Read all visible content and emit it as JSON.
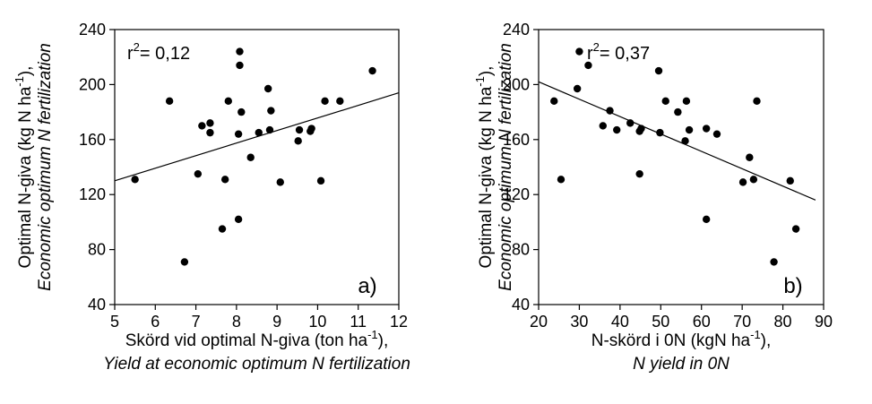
{
  "chart_data": [
    {
      "type": "scatter",
      "panel_label": "a)",
      "annotation": {
        "r2_prefix": "r",
        "r2_sup": "2",
        "r2_value": "= 0,12"
      },
      "xlabel": {
        "sv_pre": "Skörd vid optimal N-giva (ton ha",
        "sv_sup": "-1",
        "sv_post": "),",
        "en": "Yield at economic optimum N fertilization"
      },
      "ylabel": {
        "sv_pre": "Optimal N-giva (kg N ha",
        "sv_sup": "-1",
        "sv_post": "),",
        "en": "Economic optimum N fertilization"
      },
      "xlim": [
        5,
        12
      ],
      "ylim": [
        40,
        240
      ],
      "xticks": [
        "5",
        "6",
        "7",
        "8",
        "9",
        "10",
        "11",
        "12"
      ],
      "yticks": [
        "40",
        "80",
        "120",
        "160",
        "200",
        "240"
      ],
      "grid": false,
      "points": [
        {
          "x": 5.5,
          "y": 131
        },
        {
          "x": 6.35,
          "y": 188
        },
        {
          "x": 6.72,
          "y": 71
        },
        {
          "x": 7.05,
          "y": 135
        },
        {
          "x": 7.15,
          "y": 170
        },
        {
          "x": 7.35,
          "y": 172
        },
        {
          "x": 7.35,
          "y": 165
        },
        {
          "x": 7.65,
          "y": 95
        },
        {
          "x": 7.72,
          "y": 131
        },
        {
          "x": 7.8,
          "y": 188
        },
        {
          "x": 8.05,
          "y": 102
        },
        {
          "x": 8.05,
          "y": 164
        },
        {
          "x": 8.08,
          "y": 224
        },
        {
          "x": 8.08,
          "y": 214
        },
        {
          "x": 8.12,
          "y": 180
        },
        {
          "x": 8.35,
          "y": 147
        },
        {
          "x": 8.55,
          "y": 165
        },
        {
          "x": 8.78,
          "y": 197
        },
        {
          "x": 8.82,
          "y": 167
        },
        {
          "x": 8.85,
          "y": 181
        },
        {
          "x": 9.08,
          "y": 129
        },
        {
          "x": 9.52,
          "y": 159
        },
        {
          "x": 9.55,
          "y": 167
        },
        {
          "x": 9.82,
          "y": 166
        },
        {
          "x": 9.85,
          "y": 168
        },
        {
          "x": 10.08,
          "y": 130
        },
        {
          "x": 10.18,
          "y": 188
        },
        {
          "x": 10.55,
          "y": 188
        },
        {
          "x": 11.35,
          "y": 210
        }
      ],
      "trendline": {
        "x": [
          5,
          12
        ],
        "y": [
          130,
          194
        ]
      }
    },
    {
      "type": "scatter",
      "panel_label": "b)",
      "annotation": {
        "r2_prefix": "r",
        "r2_sup": "2",
        "r2_value": "= 0,37"
      },
      "xlabel": {
        "sv_pre": "N-skörd i 0N (kgN ha",
        "sv_sup": "-1",
        "sv_post": "),",
        "en": "N yield in 0N"
      },
      "ylabel": {
        "sv_pre": "Optimal N-giva (kg N ha",
        "sv_sup": "-1",
        "sv_post": "),",
        "en": "Economic optimum N fertilization"
      },
      "xlim": [
        20,
        90
      ],
      "ylim": [
        40,
        240
      ],
      "xticks": [
        "20",
        "30",
        "40",
        "50",
        "60",
        "70",
        "80",
        "90"
      ],
      "yticks": [
        "40",
        "80",
        "120",
        "160",
        "200",
        "240"
      ],
      "grid": false,
      "points": [
        {
          "x": 23.8,
          "y": 188
        },
        {
          "x": 25.5,
          "y": 131
        },
        {
          "x": 29.5,
          "y": 197
        },
        {
          "x": 30.0,
          "y": 224
        },
        {
          "x": 32.2,
          "y": 214
        },
        {
          "x": 35.8,
          "y": 170
        },
        {
          "x": 37.5,
          "y": 181
        },
        {
          "x": 39.2,
          "y": 167
        },
        {
          "x": 42.5,
          "y": 172
        },
        {
          "x": 44.8,
          "y": 135
        },
        {
          "x": 44.8,
          "y": 166
        },
        {
          "x": 45.2,
          "y": 168
        },
        {
          "x": 49.5,
          "y": 210
        },
        {
          "x": 49.8,
          "y": 165
        },
        {
          "x": 51.2,
          "y": 188
        },
        {
          "x": 54.2,
          "y": 180
        },
        {
          "x": 56.0,
          "y": 159
        },
        {
          "x": 56.3,
          "y": 188
        },
        {
          "x": 57.0,
          "y": 167
        },
        {
          "x": 61.2,
          "y": 168
        },
        {
          "x": 61.2,
          "y": 102
        },
        {
          "x": 63.8,
          "y": 164
        },
        {
          "x": 70.2,
          "y": 129
        },
        {
          "x": 71.8,
          "y": 147
        },
        {
          "x": 72.8,
          "y": 131
        },
        {
          "x": 73.6,
          "y": 188
        },
        {
          "x": 77.8,
          "y": 71
        },
        {
          "x": 81.8,
          "y": 130
        },
        {
          "x": 83.2,
          "y": 95
        }
      ],
      "trendline": {
        "x": [
          20,
          88
        ],
        "y": [
          202,
          116
        ]
      }
    }
  ]
}
